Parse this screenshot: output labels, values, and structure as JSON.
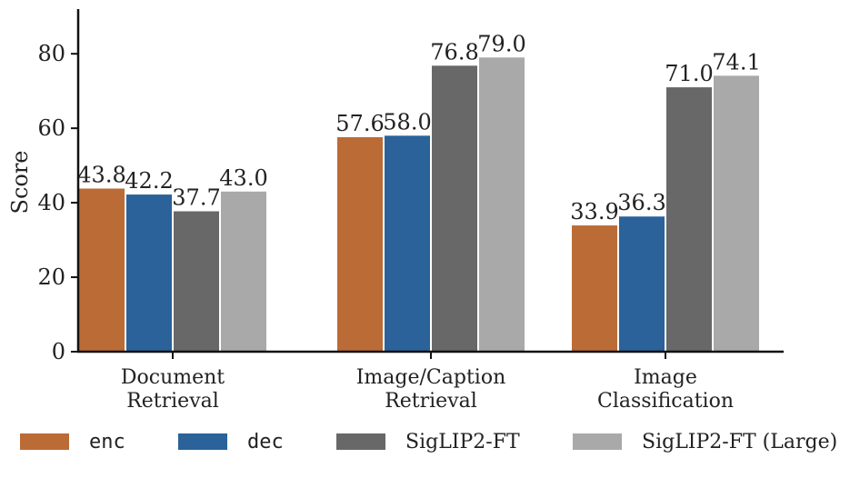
{
  "chart_data": {
    "type": "bar",
    "title": "",
    "xlabel": "",
    "ylabel": "Score",
    "ylim": [
      0,
      92
    ],
    "yticks": [
      0,
      20,
      40,
      60,
      80
    ],
    "grid": false,
    "legend_position": "bottom",
    "categories": [
      [
        "Document",
        "Retrieval"
      ],
      [
        "Image/Caption",
        "Retrieval"
      ],
      [
        "Image",
        "Classification"
      ]
    ],
    "series": [
      {
        "name": "enc",
        "color": "#BB6B36",
        "font": "mono",
        "values": [
          43.8,
          57.6,
          33.9
        ],
        "labels": [
          "43.8",
          "57.6",
          "33.9"
        ]
      },
      {
        "name": "dec",
        "color": "#2A6299",
        "font": "mono",
        "values": [
          42.2,
          58.0,
          36.3
        ],
        "labels": [
          "42.2",
          "58.0",
          "36.3"
        ]
      },
      {
        "name": "SigLIP2-FT",
        "color": "#686868",
        "font": "serif",
        "values": [
          37.7,
          76.8,
          71.0
        ],
        "labels": [
          "37.7",
          "76.8",
          "71.0"
        ]
      },
      {
        "name": "SigLIP2-FT (Large)",
        "color": "#A9A9A9",
        "font": "serif",
        "values": [
          43.0,
          79.0,
          74.1
        ],
        "labels": [
          "43.0",
          "79.0",
          "74.1"
        ]
      }
    ]
  }
}
